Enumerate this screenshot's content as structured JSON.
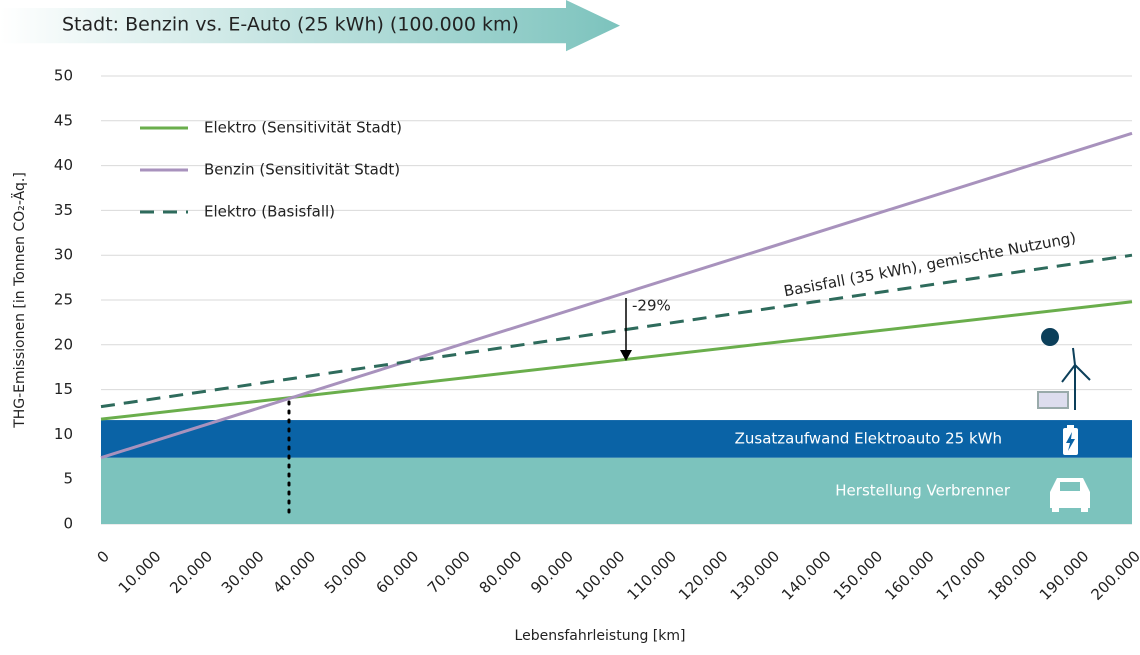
{
  "chart_data": {
    "type": "line",
    "title": "Stadt: Benzin vs. E-Auto (25 kWh)  (100.000 km)",
    "x_label": "Lebensfahrleistung [km]",
    "y_label": "THG-Emissionen [in Tonnen CO₂-Äq.]",
    "x": [
      0,
      200000
    ],
    "series": [
      {
        "name": "Elektro (Sensitivität Stadt)",
        "color": "#6aae4c",
        "dash": false,
        "values": [
          11.7,
          24.8
        ]
      },
      {
        "name": "Benzin (Sensitivität Stadt)",
        "color": "#a892bd",
        "dash": false,
        "values": [
          7.4,
          43.6
        ]
      },
      {
        "name": "Elektro (Basisfall)",
        "color": "#2e6b5c",
        "dash": true,
        "values": [
          13.1,
          30.0
        ]
      }
    ],
    "bands": [
      {
        "label": "Herstellung Verbrenner",
        "color": "#7cc3bd",
        "value": 7.4
      },
      {
        "label": "Zusatzaufwand Elektroauto 25 kWh",
        "color": "#0a63a6",
        "value": 4.2
      }
    ],
    "annotations": [
      "-29%",
      "Basisfall (35 kWh), gemischte Nutzung)"
    ],
    "xlim": [
      0,
      200000
    ],
    "xticks": [
      0,
      {
        "value": 10000,
        "label": "10.000"
      },
      {
        "value": 20000,
        "label": "20.000"
      },
      {
        "value": 30000,
        "label": "30.000"
      },
      {
        "value": 40000,
        "label": "40.000"
      },
      {
        "value": 50000,
        "label": "50.000"
      },
      {
        "value": 60000,
        "label": "60.000"
      },
      {
        "value": 70000,
        "label": "70.000"
      },
      {
        "value": 80000,
        "label": "80.000"
      },
      {
        "value": 90000,
        "label": "90.000"
      },
      {
        "value": 100000,
        "label": "100.000"
      },
      {
        "value": 110000,
        "label": "110.000"
      },
      {
        "value": 120000,
        "label": "120.000"
      },
      {
        "value": 130000,
        "label": "130.000"
      },
      {
        "value": 140000,
        "label": "140.000"
      },
      {
        "value": 150000,
        "label": "150.000"
      },
      {
        "value": 160000,
        "label": "160.000"
      },
      {
        "value": 170000,
        "label": "170.000"
      },
      {
        "value": 180000,
        "label": "180.000"
      },
      {
        "value": 190000,
        "label": "190.000"
      },
      {
        "value": 200000,
        "label": "200.000"
      }
    ],
    "ylim": [
      0,
      50
    ],
    "yticks": [
      0,
      5,
      10,
      15,
      20,
      25,
      30,
      35,
      40,
      45,
      50
    ],
    "grid": true
  }
}
